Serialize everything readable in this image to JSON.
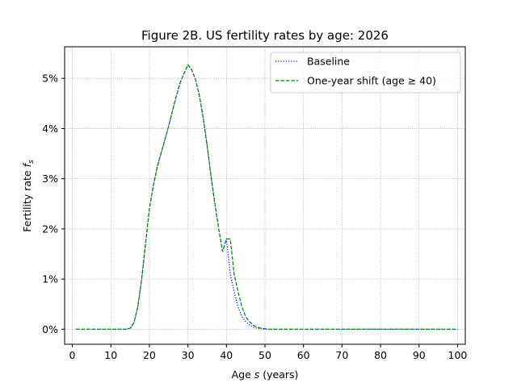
{
  "chart_data": {
    "type": "line",
    "title": "Figure 2B. US fertility rates by age: 2026",
    "xlabel_prefix": "Age ",
    "xlabel_var": "s",
    "xlabel_suffix": " (years)",
    "ylabel_prefix": "Fertility rate ",
    "ylabel_var": "f",
    "ylabel_sub": "s",
    "xlim": [
      -2,
      102
    ],
    "ylim": [
      -0.003,
      0.0563
    ],
    "x_ticks": [
      0,
      10,
      20,
      30,
      40,
      50,
      60,
      70,
      80,
      90,
      100
    ],
    "x_tick_labels": [
      "0",
      "10",
      "20",
      "30",
      "40",
      "50",
      "60",
      "70",
      "80",
      "90",
      "100"
    ],
    "y_ticks": [
      0,
      0.01,
      0.02,
      0.03,
      0.04,
      0.05
    ],
    "y_tick_labels": [
      "0%",
      "1%",
      "2%",
      "3%",
      "4%",
      "5%"
    ],
    "grid": true,
    "legend_position": "top-right",
    "series": [
      {
        "name": "Baseline",
        "color": "#0000ff",
        "style": "dotted",
        "x": [
          1,
          14,
          15,
          16,
          17,
          18,
          19,
          20,
          21,
          22,
          23,
          24,
          25,
          26,
          27,
          28,
          29,
          30,
          31,
          32,
          33,
          34,
          35,
          36,
          37,
          38,
          39,
          40,
          41,
          42,
          43,
          44,
          45,
          46,
          47,
          48,
          49,
          50,
          51,
          52,
          100
        ],
        "y": [
          0,
          0,
          0.0002,
          0.0013,
          0.0045,
          0.01,
          0.017,
          0.024,
          0.0285,
          0.0322,
          0.035,
          0.0377,
          0.0405,
          0.0435,
          0.0465,
          0.0492,
          0.051,
          0.0527,
          0.0517,
          0.0497,
          0.0465,
          0.042,
          0.0365,
          0.0305,
          0.025,
          0.02,
          0.0155,
          0.018,
          0.011,
          0.0075,
          0.0045,
          0.0025,
          0.0015,
          0.0008,
          0.0004,
          0.0002,
          0.0001,
          0.0,
          0,
          0,
          0
        ]
      },
      {
        "name": "One-year shift (age ≥ 40)",
        "color": "#008000",
        "style": "dashed",
        "x": [
          1,
          14,
          15,
          16,
          17,
          18,
          19,
          20,
          21,
          22,
          23,
          24,
          25,
          26,
          27,
          28,
          29,
          30,
          31,
          32,
          33,
          34,
          35,
          36,
          37,
          38,
          39,
          40,
          41,
          42,
          43,
          44,
          45,
          46,
          47,
          48,
          49,
          50,
          51,
          52,
          100
        ],
        "y": [
          0,
          0,
          0.0002,
          0.0013,
          0.0045,
          0.01,
          0.017,
          0.024,
          0.0285,
          0.0322,
          0.035,
          0.0377,
          0.0405,
          0.0435,
          0.0465,
          0.0492,
          0.051,
          0.0527,
          0.0517,
          0.0497,
          0.0465,
          0.042,
          0.0365,
          0.0305,
          0.025,
          0.02,
          0.0155,
          0.018,
          0.018,
          0.011,
          0.0075,
          0.0045,
          0.0025,
          0.0015,
          0.0008,
          0.0004,
          0.0002,
          0.0001,
          0,
          0,
          0
        ]
      }
    ]
  }
}
